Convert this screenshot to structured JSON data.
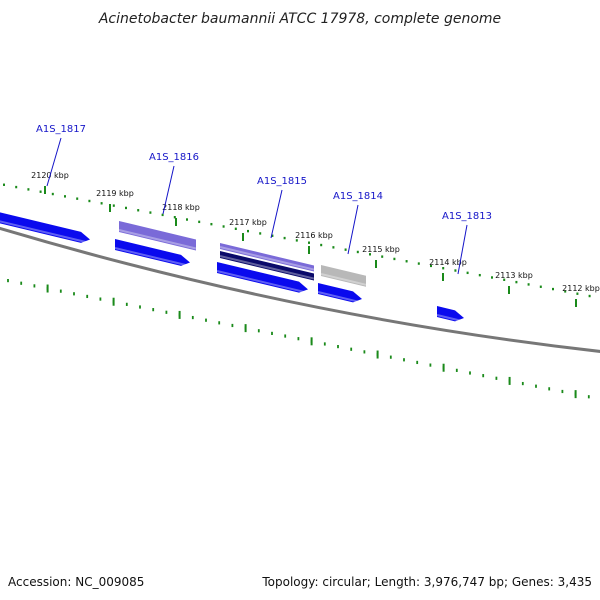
{
  "title": "Acinetobacter baumannii ATCC 17978, complete genome",
  "footer": {
    "accession": "Accession: NC_009085",
    "summary": "Topology: circular; Length: 3,976,747 bp; Genes: 3,435"
  },
  "colors": {
    "backbone": "#777777",
    "tick_dots": "#1a8a1a",
    "gene_blue": "#0a0aee",
    "gene_purple": "#7a6ad8",
    "gene_navy": "#0a0a6a",
    "gene_grey": "#b8b8b8",
    "label_blue": "#1515c8"
  },
  "scale_ticks": [
    {
      "label": "2120 kbp"
    },
    {
      "label": "2119 kbp"
    },
    {
      "label": "2118 kbp"
    },
    {
      "label": "2117 kbp"
    },
    {
      "label": "2116 kbp"
    },
    {
      "label": "2115 kbp"
    },
    {
      "label": "2114 kbp"
    },
    {
      "label": "2113 kbp"
    },
    {
      "label": "2112 kbp"
    }
  ],
  "gene_labels": [
    {
      "name": "A1S_1817"
    },
    {
      "name": "A1S_1816"
    },
    {
      "name": "A1S_1815"
    },
    {
      "name": "A1S_1814"
    },
    {
      "name": "A1S_1813"
    }
  ],
  "features": [
    {
      "name": "arrow-left-edge",
      "color": "gene_blue"
    },
    {
      "name": "arrow-1816-lower",
      "color": "gene_blue"
    },
    {
      "name": "box-1816-purple",
      "color": "gene_purple"
    },
    {
      "name": "box-1815-purple",
      "color": "gene_purple"
    },
    {
      "name": "box-1815-navy",
      "color": "gene_navy"
    },
    {
      "name": "arrow-1815-lower",
      "color": "gene_blue"
    },
    {
      "name": "box-1814-grey",
      "color": "gene_grey"
    },
    {
      "name": "arrow-1814-lower",
      "color": "gene_blue"
    },
    {
      "name": "arrow-1813-lower",
      "color": "gene_blue"
    }
  ]
}
